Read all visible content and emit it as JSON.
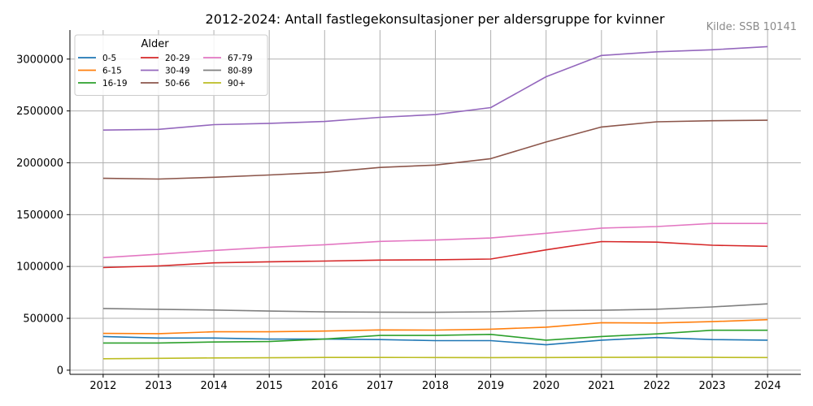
{
  "chart_data": {
    "type": "line",
    "title": "2012-2024: Antall fastlegekonsultasjoner per aldersgruppe for kvinner",
    "source": "Kilde: SSB 10141",
    "xlabel": "",
    "ylabel": "",
    "x": [
      2012,
      2013,
      2014,
      2015,
      2016,
      2017,
      2018,
      2019,
      2020,
      2021,
      2022,
      2023,
      2024
    ],
    "xlim": [
      2011.4,
      2024.6
    ],
    "ylim": [
      -40000,
      3280000
    ],
    "yticks": [
      0,
      500000,
      1000000,
      1500000,
      2000000,
      2500000,
      3000000
    ],
    "grid": true,
    "legend": {
      "title": "Alder",
      "placement": "top-left",
      "columns": 3
    },
    "series": [
      {
        "name": "0-5",
        "color": "#1f77b4",
        "values": [
          325000,
          310000,
          310000,
          300000,
          300000,
          295000,
          285000,
          285000,
          245000,
          290000,
          315000,
          295000,
          290000
        ]
      },
      {
        "name": "6-15",
        "color": "#ff7f0e",
        "values": [
          355000,
          352000,
          370000,
          370000,
          377000,
          388000,
          387000,
          395000,
          415000,
          458000,
          455000,
          468000,
          487000
        ]
      },
      {
        "name": "16-19",
        "color": "#2ca02c",
        "values": [
          262000,
          262000,
          272000,
          276000,
          300000,
          335000,
          335000,
          345000,
          290000,
          325000,
          350000,
          385000,
          385000
        ]
      },
      {
        "name": "20-29",
        "color": "#d62728",
        "values": [
          990000,
          1005000,
          1035000,
          1045000,
          1052000,
          1062000,
          1065000,
          1072000,
          1160000,
          1240000,
          1235000,
          1205000,
          1195000
        ]
      },
      {
        "name": "30-49",
        "color": "#9467bd",
        "values": [
          2315000,
          2322000,
          2368000,
          2380000,
          2398000,
          2438000,
          2465000,
          2532000,
          2830000,
          3035000,
          3070000,
          3090000,
          3120000
        ]
      },
      {
        "name": "50-66",
        "color": "#8c564b",
        "values": [
          1850000,
          1843000,
          1860000,
          1882000,
          1907000,
          1955000,
          1978000,
          2040000,
          2200000,
          2345000,
          2395000,
          2405000,
          2410000
        ]
      },
      {
        "name": "67-79",
        "color": "#e377c2",
        "values": [
          1085000,
          1118000,
          1155000,
          1185000,
          1210000,
          1242000,
          1255000,
          1275000,
          1320000,
          1370000,
          1385000,
          1415000,
          1415000
        ]
      },
      {
        "name": "80-89",
        "color": "#7f7f7f",
        "values": [
          595000,
          587000,
          580000,
          570000,
          562000,
          560000,
          558000,
          563000,
          575000,
          578000,
          588000,
          610000,
          640000
        ]
      },
      {
        "name": "90+",
        "color": "#bcbd22",
        "values": [
          110000,
          114000,
          118000,
          120000,
          123000,
          123000,
          122000,
          121000,
          122000,
          124000,
          125000,
          124000,
          122000
        ]
      }
    ]
  }
}
